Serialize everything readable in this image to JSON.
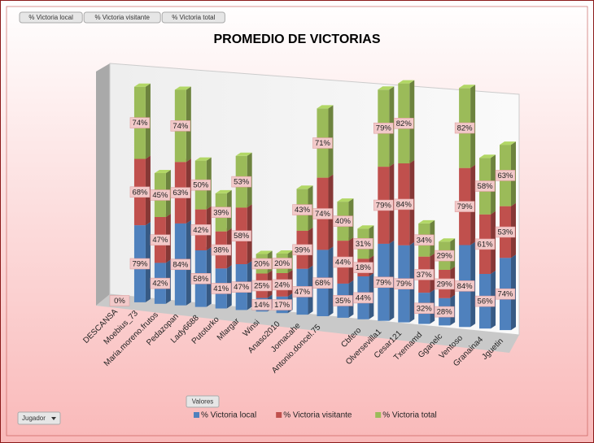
{
  "chart_data": {
    "type": "bar3d-stacked",
    "title": "PROMEDIO DE VICTORIAS",
    "field_button": "Valores",
    "axis_button": "Jugador",
    "categories": [
      "DESCANSA",
      "Moebius_73",
      "Maria.moreno.frutos",
      "Pedazopan",
      "Lady6688",
      "Putoturko",
      "Mlargar",
      "Winsi",
      "Anaso2010",
      "Jomacahe",
      "Antonio.doncel.75",
      null,
      "Cbfero",
      "Olversevilla1",
      "Cesar121",
      "Txemamd",
      "Gganelc",
      "Ventoso",
      "Granaina4",
      "Jguetin"
    ],
    "series": [
      {
        "name": "% Victoria local",
        "color": "#4f81bd",
        "values": [
          0,
          79,
          42,
          84,
          58,
          41,
          47,
          14,
          17,
          47,
          68,
          35,
          44,
          79,
          79,
          32,
          28,
          84,
          56,
          74
        ],
        "value_labels": [
          "0%",
          "79%",
          "42%",
          "84%",
          "58%",
          "41%",
          "47%",
          "14%",
          "17%",
          "47%",
          "68%",
          "35%",
          "44%",
          "79%",
          "79%",
          "32%",
          "28%",
          "84%",
          "56%",
          "74%"
        ]
      },
      {
        "name": "% Victoria visitante",
        "color": "#c0504d",
        "values": [
          null,
          68,
          47,
          63,
          42,
          38,
          58,
          25,
          24,
          39,
          74,
          44,
          18,
          79,
          84,
          37,
          29,
          79,
          61,
          53
        ],
        "value_labels": [
          null,
          "68%",
          "47%",
          "63%",
          "42%",
          "38%",
          "58%",
          "25%",
          "24%",
          "39%",
          "74%",
          "44%",
          "18%",
          "79%",
          "84%",
          "37%",
          "29%",
          "79%",
          "61%",
          "53%"
        ]
      },
      {
        "name": "% Victoria total",
        "color": "#9bbb59",
        "values": [
          null,
          74,
          45,
          74,
          50,
          39,
          53,
          20,
          20,
          43,
          71,
          40,
          31,
          79,
          82,
          34,
          29,
          82,
          58,
          63
        ],
        "value_labels": [
          null,
          "74%",
          "45%",
          "74%",
          "50%",
          "39%",
          "53%",
          "20%",
          "20%",
          "43%",
          "71%",
          "40%",
          "31%",
          "79%",
          "82%",
          "34%",
          "29%",
          "82%",
          "58%",
          "63%"
        ]
      }
    ]
  }
}
